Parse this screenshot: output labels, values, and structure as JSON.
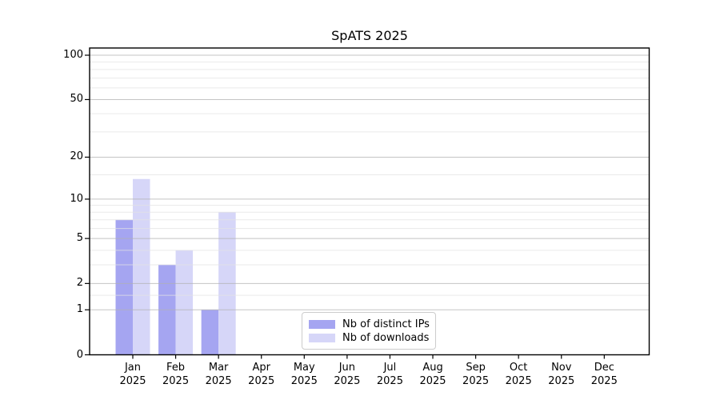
{
  "page": {
    "background": "#ffffff"
  },
  "chart_data": {
    "type": "bar",
    "title": "SpATS 2025",
    "months": [
      "Jan",
      "Feb",
      "Mar",
      "Apr",
      "May",
      "Jun",
      "Jul",
      "Aug",
      "Sep",
      "Oct",
      "Nov",
      "Dec"
    ],
    "year_label": "2025",
    "series": [
      {
        "name": "Nb of distinct IPs",
        "color": "#a5a5f1",
        "values": [
          7,
          3,
          1,
          0,
          0,
          0,
          0,
          0,
          0,
          0,
          0,
          0
        ]
      },
      {
        "name": "Nb of downloads",
        "color": "#d6d6f8",
        "values": [
          14,
          4,
          8,
          0,
          0,
          0,
          0,
          0,
          0,
          0,
          0,
          0
        ]
      }
    ],
    "y_axis": {
      "scale": "log1p",
      "major_ticks": [
        0,
        1,
        2,
        5,
        10,
        20,
        50,
        100
      ],
      "minor_ticks": [
        1.5,
        3,
        4,
        6,
        7,
        8,
        9,
        15,
        30,
        40,
        60,
        70,
        80,
        90
      ],
      "ymin": 0,
      "ymax": 112
    },
    "legend": {
      "position": "lower-center"
    },
    "grid": {
      "major_color": "#b2b2b2",
      "minor_color": "#e3e3e3"
    },
    "axis_color": "#000000"
  }
}
